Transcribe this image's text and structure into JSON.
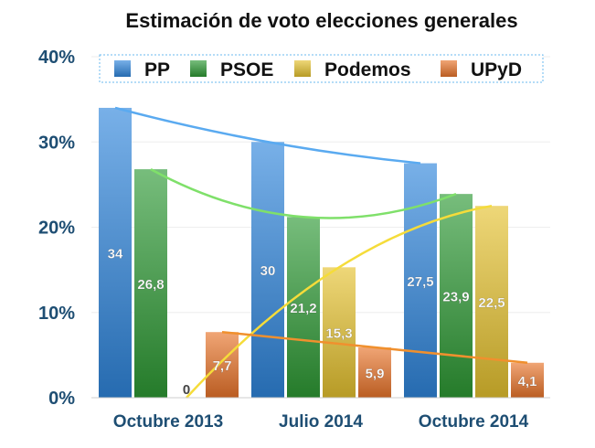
{
  "chart_data": {
    "type": "bar",
    "title": "Estimación de voto elecciones generales",
    "xlabel": "",
    "ylabel": "",
    "ylim": [
      0,
      40
    ],
    "yticks": [
      "0%",
      "10%",
      "20%",
      "30%",
      "40%"
    ],
    "grid": true,
    "legend": "top",
    "categories": [
      "Octubre 2013",
      "Julio 2014",
      "Octubre 2014"
    ],
    "series": [
      {
        "name": "PP",
        "values": [
          34,
          30,
          27.5
        ],
        "labels": [
          "34",
          "30",
          "27,5"
        ],
        "color": "#2f86dc",
        "trend_color": "#5aaaf0"
      },
      {
        "name": "PSOE",
        "values": [
          26.8,
          21.2,
          23.9
        ],
        "labels": [
          "26,8",
          "21,2",
          "23,9"
        ],
        "color": "#2e9a35",
        "trend_color": "#7fe06a"
      },
      {
        "name": "Podemos",
        "values": [
          0,
          15.3,
          22.5
        ],
        "labels": [
          "0",
          "15,3",
          "22,5"
        ],
        "color": "#e5c230",
        "trend_color": "#f5dc3a"
      },
      {
        "name": "UPyD",
        "values": [
          7.7,
          5.9,
          4.1
        ],
        "labels": [
          "7,7",
          "5,9",
          "4,1"
        ],
        "color": "#e8742a",
        "trend_color": "#f0902e"
      }
    ],
    "trendlines": true
  }
}
